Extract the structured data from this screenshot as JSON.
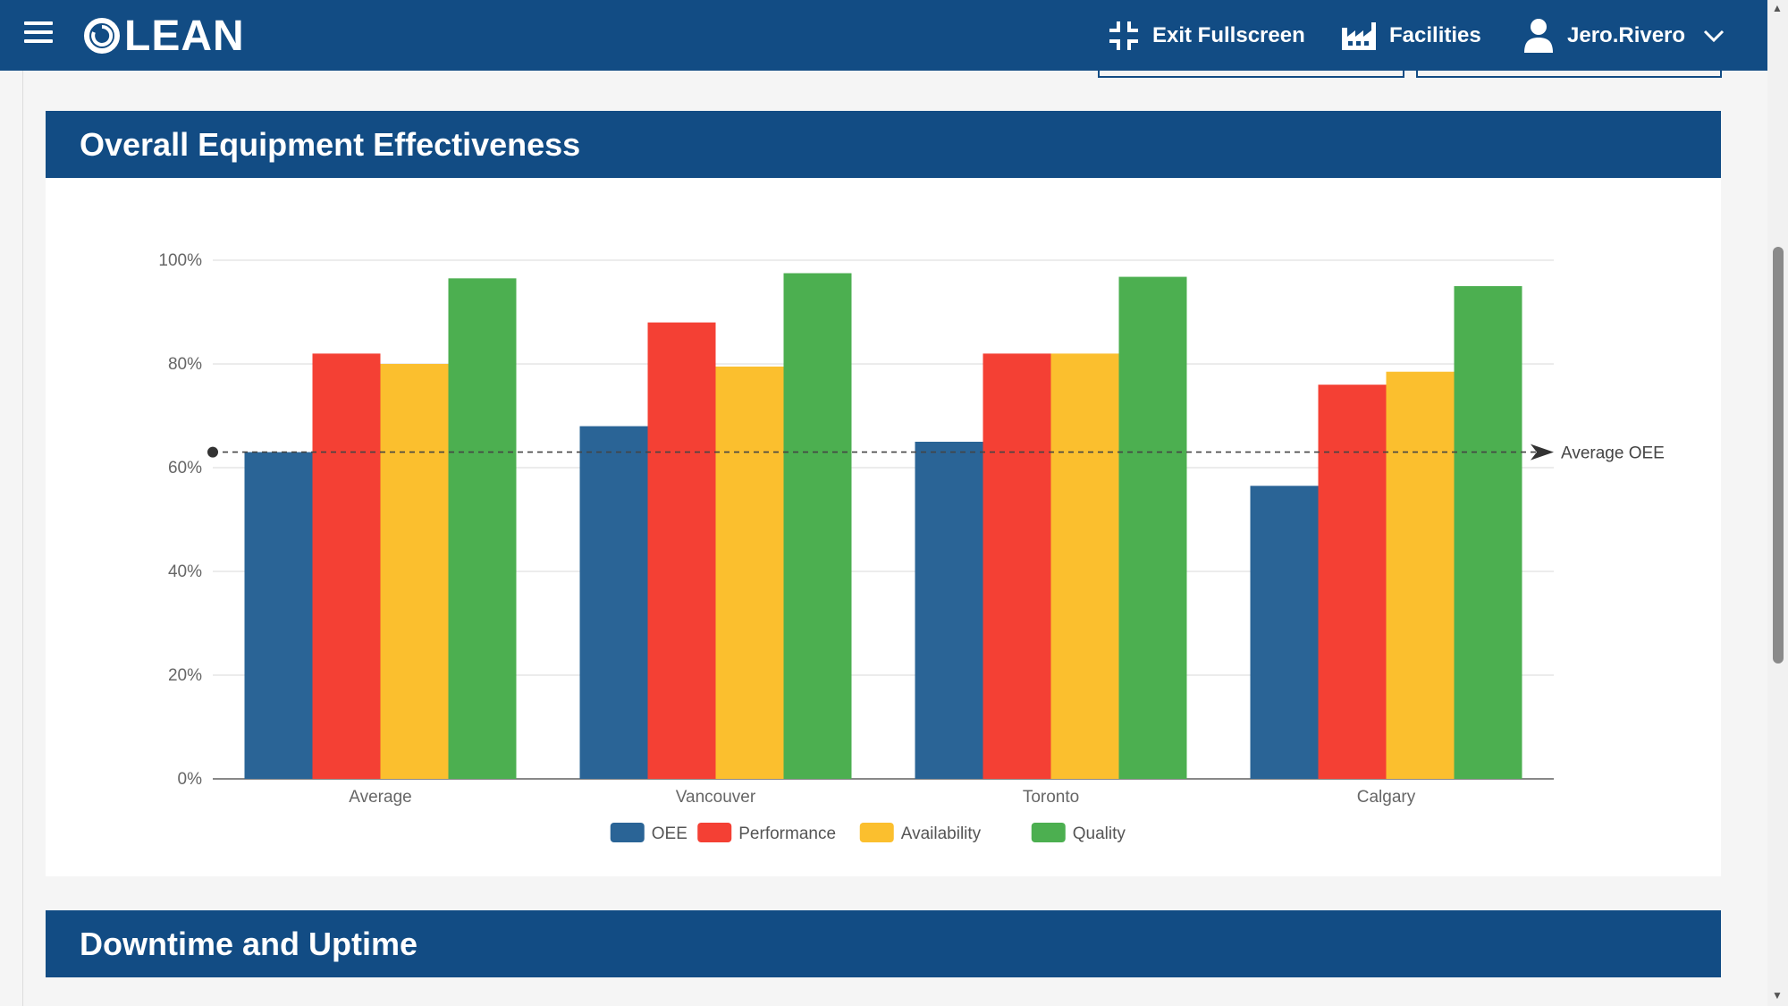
{
  "header": {
    "logo_text": "LEAN",
    "exit_fullscreen_label": "Exit Fullscreen",
    "facilities_label": "Facilities",
    "user_name": "Jero.Rivero"
  },
  "sections": {
    "oee_title": "Overall Equipment Effectiveness",
    "downtime_title": "Downtime and Uptime"
  },
  "chart_data": {
    "type": "bar",
    "categories": [
      "Average",
      "Vancouver",
      "Toronto",
      "Calgary"
    ],
    "series": [
      {
        "name": "OEE",
        "color": "#2a6496",
        "values": [
          63,
          68,
          65,
          56.5
        ]
      },
      {
        "name": "Performance",
        "color": "#f44034",
        "values": [
          82,
          88,
          82,
          76
        ]
      },
      {
        "name": "Availability",
        "color": "#fbbf2e",
        "values": [
          80,
          79.5,
          82,
          78.5
        ]
      },
      {
        "name": "Quality",
        "color": "#4caf50",
        "values": [
          96.5,
          97.5,
          96.8,
          95
        ]
      }
    ],
    "y_ticks": [
      "0%",
      "20%",
      "40%",
      "60%",
      "80%",
      "100%"
    ],
    "ylim": [
      0,
      100
    ],
    "reference_line": {
      "label": "Average OEE",
      "value": 63
    },
    "legend_position": "bottom-center",
    "grid": true
  }
}
